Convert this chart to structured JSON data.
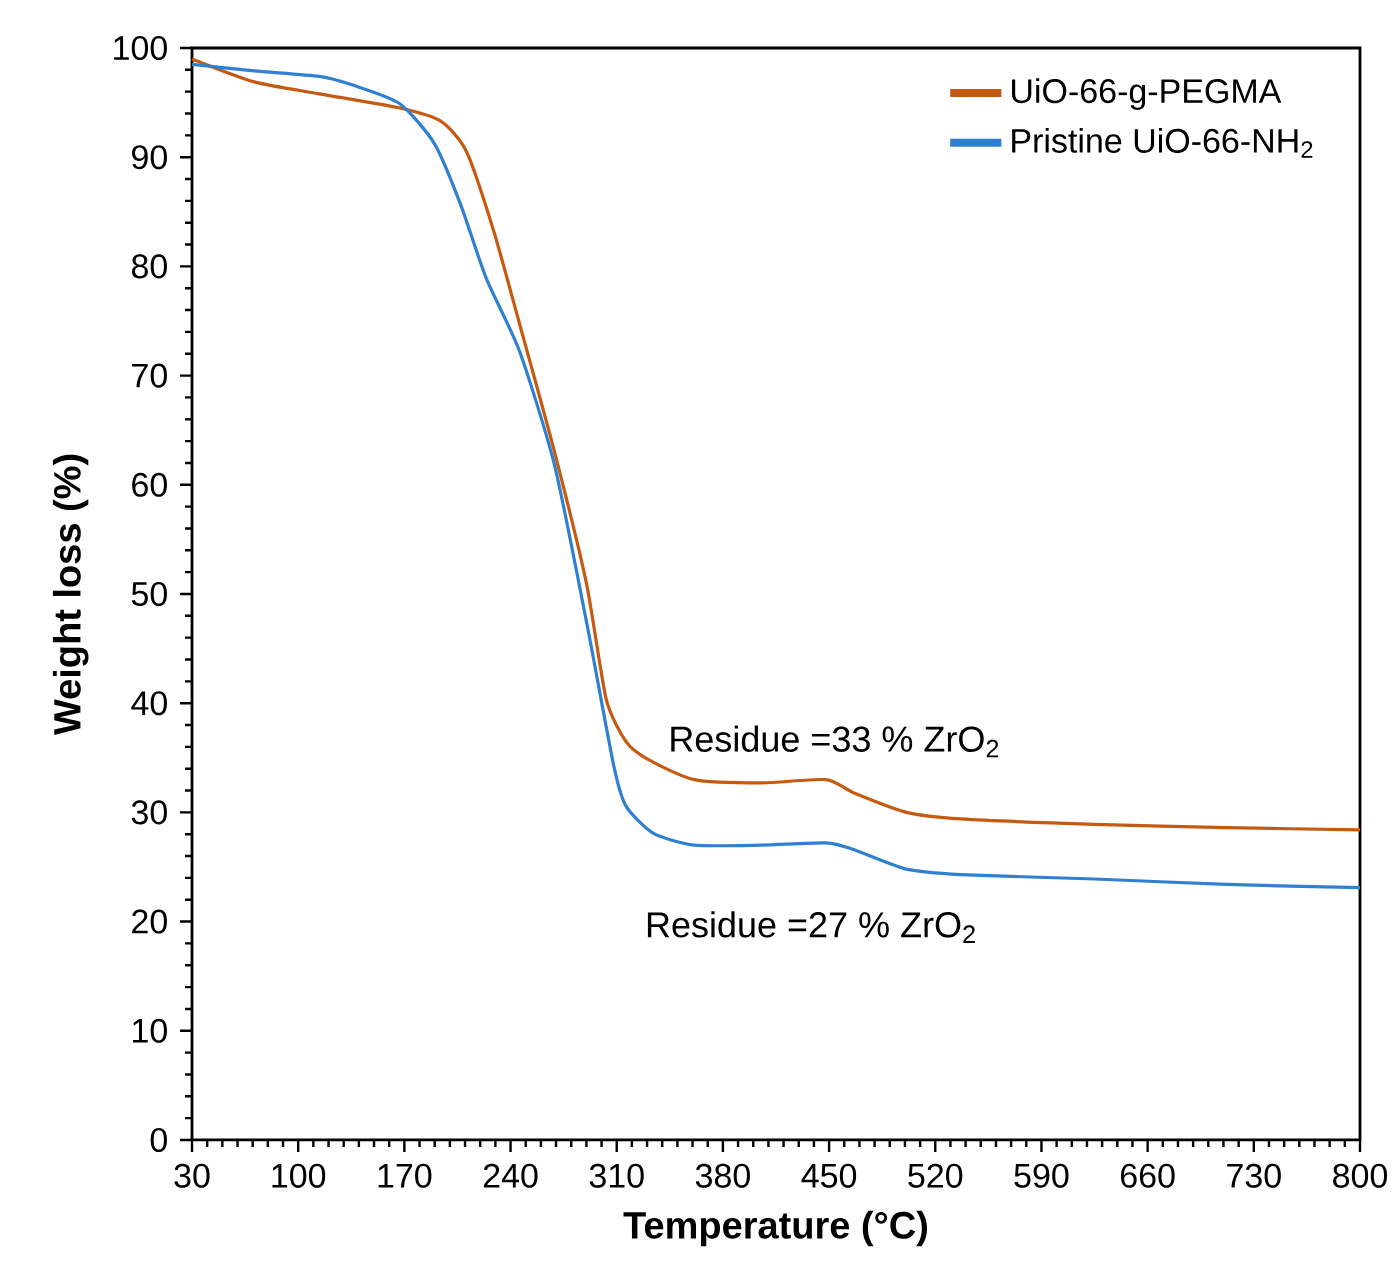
{
  "chart_data": {
    "type": "line",
    "xlabel": "Temperature (°C)",
    "ylabel": "Weight loss (%)",
    "xlim": [
      30,
      800
    ],
    "xticks": [
      30,
      100,
      170,
      240,
      310,
      380,
      450,
      520,
      590,
      660,
      730,
      800
    ],
    "ylim": [
      0,
      100
    ],
    "yticks": [
      0,
      10,
      20,
      30,
      40,
      50,
      60,
      70,
      80,
      90,
      100
    ],
    "grid": false,
    "legend": "top right",
    "marker": "none",
    "line_style": "solid",
    "series": [
      {
        "name": "UiO-66-g-PEGMA",
        "color": "#c55a11",
        "x": [
          30,
          71,
          114,
          167,
          194,
          211,
          229,
          246,
          269,
          290,
          303,
          316,
          330,
          361,
          405,
          448,
          466,
          501,
          537,
          625,
          712,
          800
        ],
        "values": [
          99.0,
          96.9,
          95.8,
          94.5,
          93.3,
          90.5,
          83.2,
          74.7,
          63,
          51,
          40.4,
          36.5,
          34.9,
          33.0,
          32.7,
          33.0,
          31.8,
          30.0,
          29.4,
          28.9,
          28.6,
          28.4
        ]
      },
      {
        "name": "Pristine UiO-66-NH$_{2}$",
        "color": "#2f80d0",
        "x": [
          30,
          71,
          114,
          136,
          167,
          190,
          207,
          224,
          246,
          269,
          290,
          308,
          316,
          334,
          361,
          405,
          448,
          466,
          501,
          537,
          625,
          712,
          800
        ],
        "values": [
          98.5,
          97.9,
          97.4,
          96.6,
          94.9,
          91.2,
          85.7,
          78.9,
          72.2,
          61.8,
          47.5,
          34.3,
          30.6,
          28.1,
          27.0,
          27.0,
          27.2,
          26.6,
          24.8,
          24.3,
          23.9,
          23.4,
          23.1
        ]
      }
    ],
    "annotations": [
      "Residue =33 % ZrO$_{2}$",
      "Residue =27 % ZrO$_{2}$"
    ]
  }
}
